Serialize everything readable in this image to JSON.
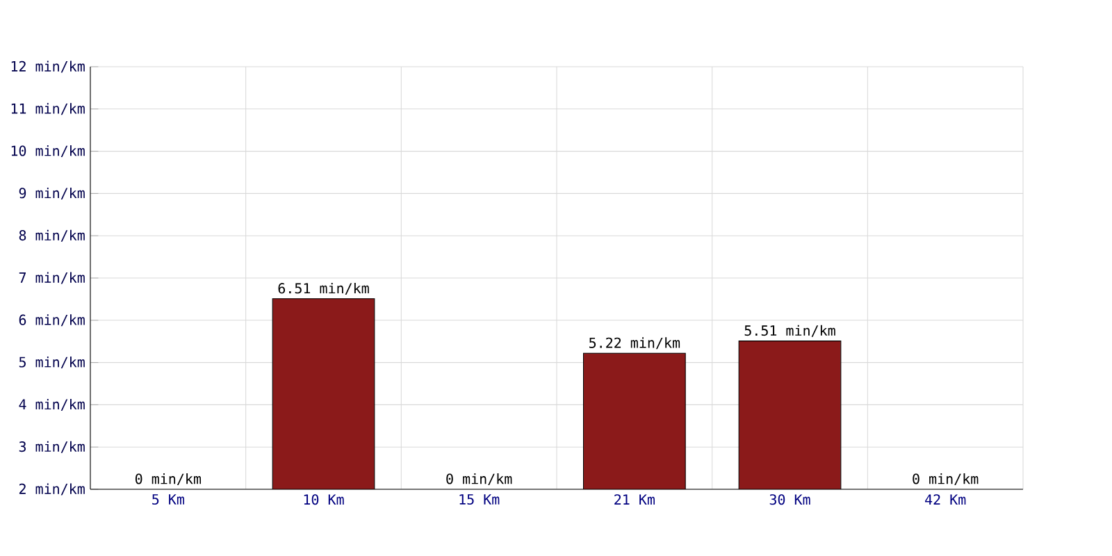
{
  "chart_data": {
    "type": "bar",
    "categories": [
      "5 Km",
      "10 Km",
      "15 Km",
      "21 Km",
      "30 Km",
      "42 Km"
    ],
    "values": [
      null,
      6.51,
      null,
      5.22,
      5.51,
      null
    ],
    "value_labels": [
      "0 min/km",
      "6.51 min/km",
      "0 min/km",
      "5.22 min/km",
      "5.51 min/km",
      "0 min/km"
    ],
    "color": "#8b1a1a",
    "ylim": [
      2,
      12
    ],
    "yticks": [
      {
        "value": 2,
        "label": "2 min/km"
      },
      {
        "value": 3,
        "label": "3 min/km"
      },
      {
        "value": 4,
        "label": "4 min/km"
      },
      {
        "value": 5,
        "label": "5 min/km"
      },
      {
        "value": 6,
        "label": "6 min/km"
      },
      {
        "value": 7,
        "label": "7 min/km"
      },
      {
        "value": 8,
        "label": "8 min/km"
      },
      {
        "value": 9,
        "label": "9 min/km"
      },
      {
        "value": 10,
        "label": "10 min/km"
      },
      {
        "value": 11,
        "label": "11 min/km"
      },
      {
        "value": 12,
        "label": "12 min/km"
      }
    ],
    "grid": true
  }
}
